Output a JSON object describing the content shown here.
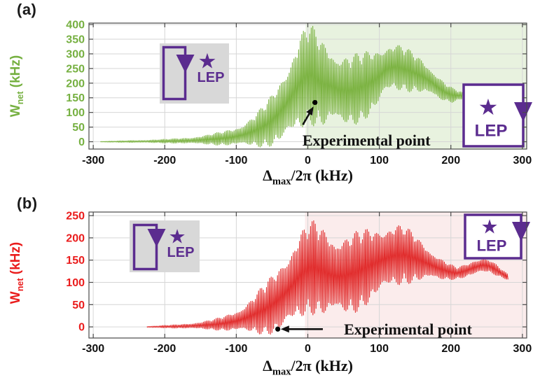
{
  "figure_labels": {
    "panel_a": "(a)",
    "panel_b": "(b)"
  },
  "axis_labels": {
    "y_main": "W",
    "y_sub": "net",
    "y_unit": " (kHz)",
    "x_delta": "Δ",
    "x_sub": "max",
    "x_rest": "/2π (kHz)"
  },
  "icons": {
    "star": "★"
  },
  "chart_data": [
    {
      "type": "line",
      "panel": "(a)",
      "xlabel": "Δmax/2π (kHz)",
      "ylabel": "Wnet (kHz)",
      "xlim": [
        -306,
        306
      ],
      "ylim": [
        -25,
        405
      ],
      "xticks": [
        -300,
        -200,
        -100,
        0,
        100,
        200,
        300
      ],
      "yticks": [
        0,
        50,
        100,
        150,
        200,
        250,
        300,
        350,
        400
      ],
      "grid": true,
      "colors": {
        "curve": "#7cb342",
        "axis_text": "#76b041",
        "shade": "#e8f2df",
        "tick_text": "#111111"
      },
      "shaded_region": {
        "x_start": -3,
        "x_end": 306
      },
      "oscillation": {
        "sample_step_kHz": 1.1
      },
      "envelope": [
        [
          -290,
          -1,
          1
        ],
        [
          -265,
          -2,
          3
        ],
        [
          -240,
          -3,
          5
        ],
        [
          -215,
          -4,
          7
        ],
        [
          -190,
          -5,
          10
        ],
        [
          -165,
          -7,
          15
        ],
        [
          -145,
          -9,
          22
        ],
        [
          -125,
          -12,
          32
        ],
        [
          -105,
          -15,
          46
        ],
        [
          -90,
          -17,
          65
        ],
        [
          -75,
          -18,
          92
        ],
        [
          -60,
          -20,
          130
        ],
        [
          -50,
          -18,
          165
        ],
        [
          -42,
          -14,
          200
        ],
        [
          -33,
          -8,
          248
        ],
        [
          -25,
          0,
          295
        ],
        [
          -18,
          15,
          335
        ],
        [
          -11,
          30,
          372
        ],
        [
          -5,
          42,
          395
        ],
        [
          0,
          50,
          404
        ],
        [
          6,
          55,
          398
        ],
        [
          13,
          48,
          375
        ],
        [
          22,
          42,
          350
        ],
        [
          32,
          48,
          332
        ],
        [
          45,
          42,
          310
        ],
        [
          58,
          50,
          300
        ],
        [
          72,
          62,
          305
        ],
        [
          85,
          80,
          315
        ],
        [
          98,
          110,
          328
        ],
        [
          110,
          160,
          338
        ],
        [
          122,
          172,
          340
        ],
        [
          135,
          172,
          325
        ],
        [
          148,
          168,
          305
        ],
        [
          160,
          162,
          285
        ],
        [
          172,
          152,
          258
        ],
        [
          182,
          142,
          228
        ],
        [
          192,
          136,
          202
        ],
        [
          202,
          134,
          184
        ],
        [
          209,
          140,
          176
        ],
        [
          216,
          146,
          170
        ]
      ],
      "experimental_point": {
        "x": 10,
        "y": 134,
        "label": "Experimental point",
        "arrow": {
          "from": [
            -7,
            58
          ],
          "to": [
            6,
            112
          ]
        },
        "label_center": [
          82,
          5
        ]
      },
      "insets": [
        {
          "side": "left",
          "label": "LEP",
          "has_star": true,
          "loop_encloses_star": false,
          "bg": "#d8d8d8",
          "border": false
        },
        {
          "side": "right",
          "label": "LEP",
          "has_star": true,
          "loop_encloses_star": true,
          "bg": "#ffffff",
          "border": true
        }
      ]
    },
    {
      "type": "line",
      "panel": "(b)",
      "xlabel": "Δmax/2π (kHz)",
      "ylabel": "Wnet (kHz)",
      "xlim": [
        -306,
        306
      ],
      "ylim": [
        -25,
        258
      ],
      "xticks": [
        -300,
        -200,
        -100,
        0,
        100,
        200,
        300
      ],
      "yticks": [
        0,
        50,
        100,
        150,
        200,
        250
      ],
      "grid": true,
      "colors": {
        "curve": "#e12d2d",
        "axis_text": "#ea1c1c",
        "shade": "#fbecec",
        "tick_text": "#111111"
      },
      "shaded_region": {
        "x_start": -4,
        "x_end": 306
      },
      "oscillation": {
        "sample_step_kHz": 1.1
      },
      "envelope": [
        [
          -225,
          -1,
          1
        ],
        [
          -205,
          -2,
          3
        ],
        [
          -185,
          -3,
          5
        ],
        [
          -165,
          -4,
          8
        ],
        [
          -148,
          -5,
          12
        ],
        [
          -130,
          -7,
          18
        ],
        [
          -115,
          -9,
          26
        ],
        [
          -100,
          -12,
          38
        ],
        [
          -88,
          -14,
          52
        ],
        [
          -75,
          -16,
          72
        ],
        [
          -62,
          -18,
          95
        ],
        [
          -50,
          -19,
          118
        ],
        [
          -40,
          -17,
          142
        ],
        [
          -30,
          -11,
          168
        ],
        [
          -21,
          -2,
          192
        ],
        [
          -13,
          10,
          212
        ],
        [
          -5,
          20,
          228
        ],
        [
          2,
          26,
          237
        ],
        [
          10,
          27,
          240
        ],
        [
          18,
          22,
          232
        ],
        [
          28,
          17,
          222
        ],
        [
          40,
          15,
          212
        ],
        [
          52,
          20,
          210
        ],
        [
          64,
          28,
          214
        ],
        [
          76,
          40,
          220
        ],
        [
          88,
          52,
          226
        ],
        [
          100,
          65,
          231
        ],
        [
          112,
          78,
          234
        ],
        [
          124,
          88,
          234
        ],
        [
          136,
          95,
          227
        ],
        [
          148,
          99,
          212
        ],
        [
          160,
          101,
          194
        ],
        [
          172,
          103,
          176
        ],
        [
          184,
          104,
          158
        ],
        [
          196,
          105,
          144
        ],
        [
          208,
          107,
          134
        ],
        [
          220,
          111,
          140
        ],
        [
          232,
          116,
          150
        ],
        [
          244,
          121,
          157
        ],
        [
          254,
          121,
          152
        ],
        [
          264,
          115,
          140
        ],
        [
          272,
          110,
          128
        ],
        [
          280,
          106,
          118
        ]
      ],
      "experimental_point": {
        "x": -42,
        "y": -5,
        "label": "Experimental point",
        "arrow": {
          "from": [
            21,
            -5
          ],
          "to": [
            -34,
            -5
          ]
        },
        "label_center": [
          140,
          -5
        ]
      },
      "insets": [
        {
          "side": "left",
          "label": "LEP",
          "has_star": true,
          "loop_encloses_star": false,
          "bg": "#d8d8d8",
          "border": false
        },
        {
          "side": "right",
          "label": "LEP",
          "has_star": true,
          "loop_encloses_star": true,
          "bg": "#ffffff",
          "border": true
        }
      ]
    }
  ],
  "style_colors": {
    "purple": "#5b2c8f",
    "grid": "#d6d6d6",
    "frame": "#4a4a4a",
    "annotation": "#111111"
  }
}
